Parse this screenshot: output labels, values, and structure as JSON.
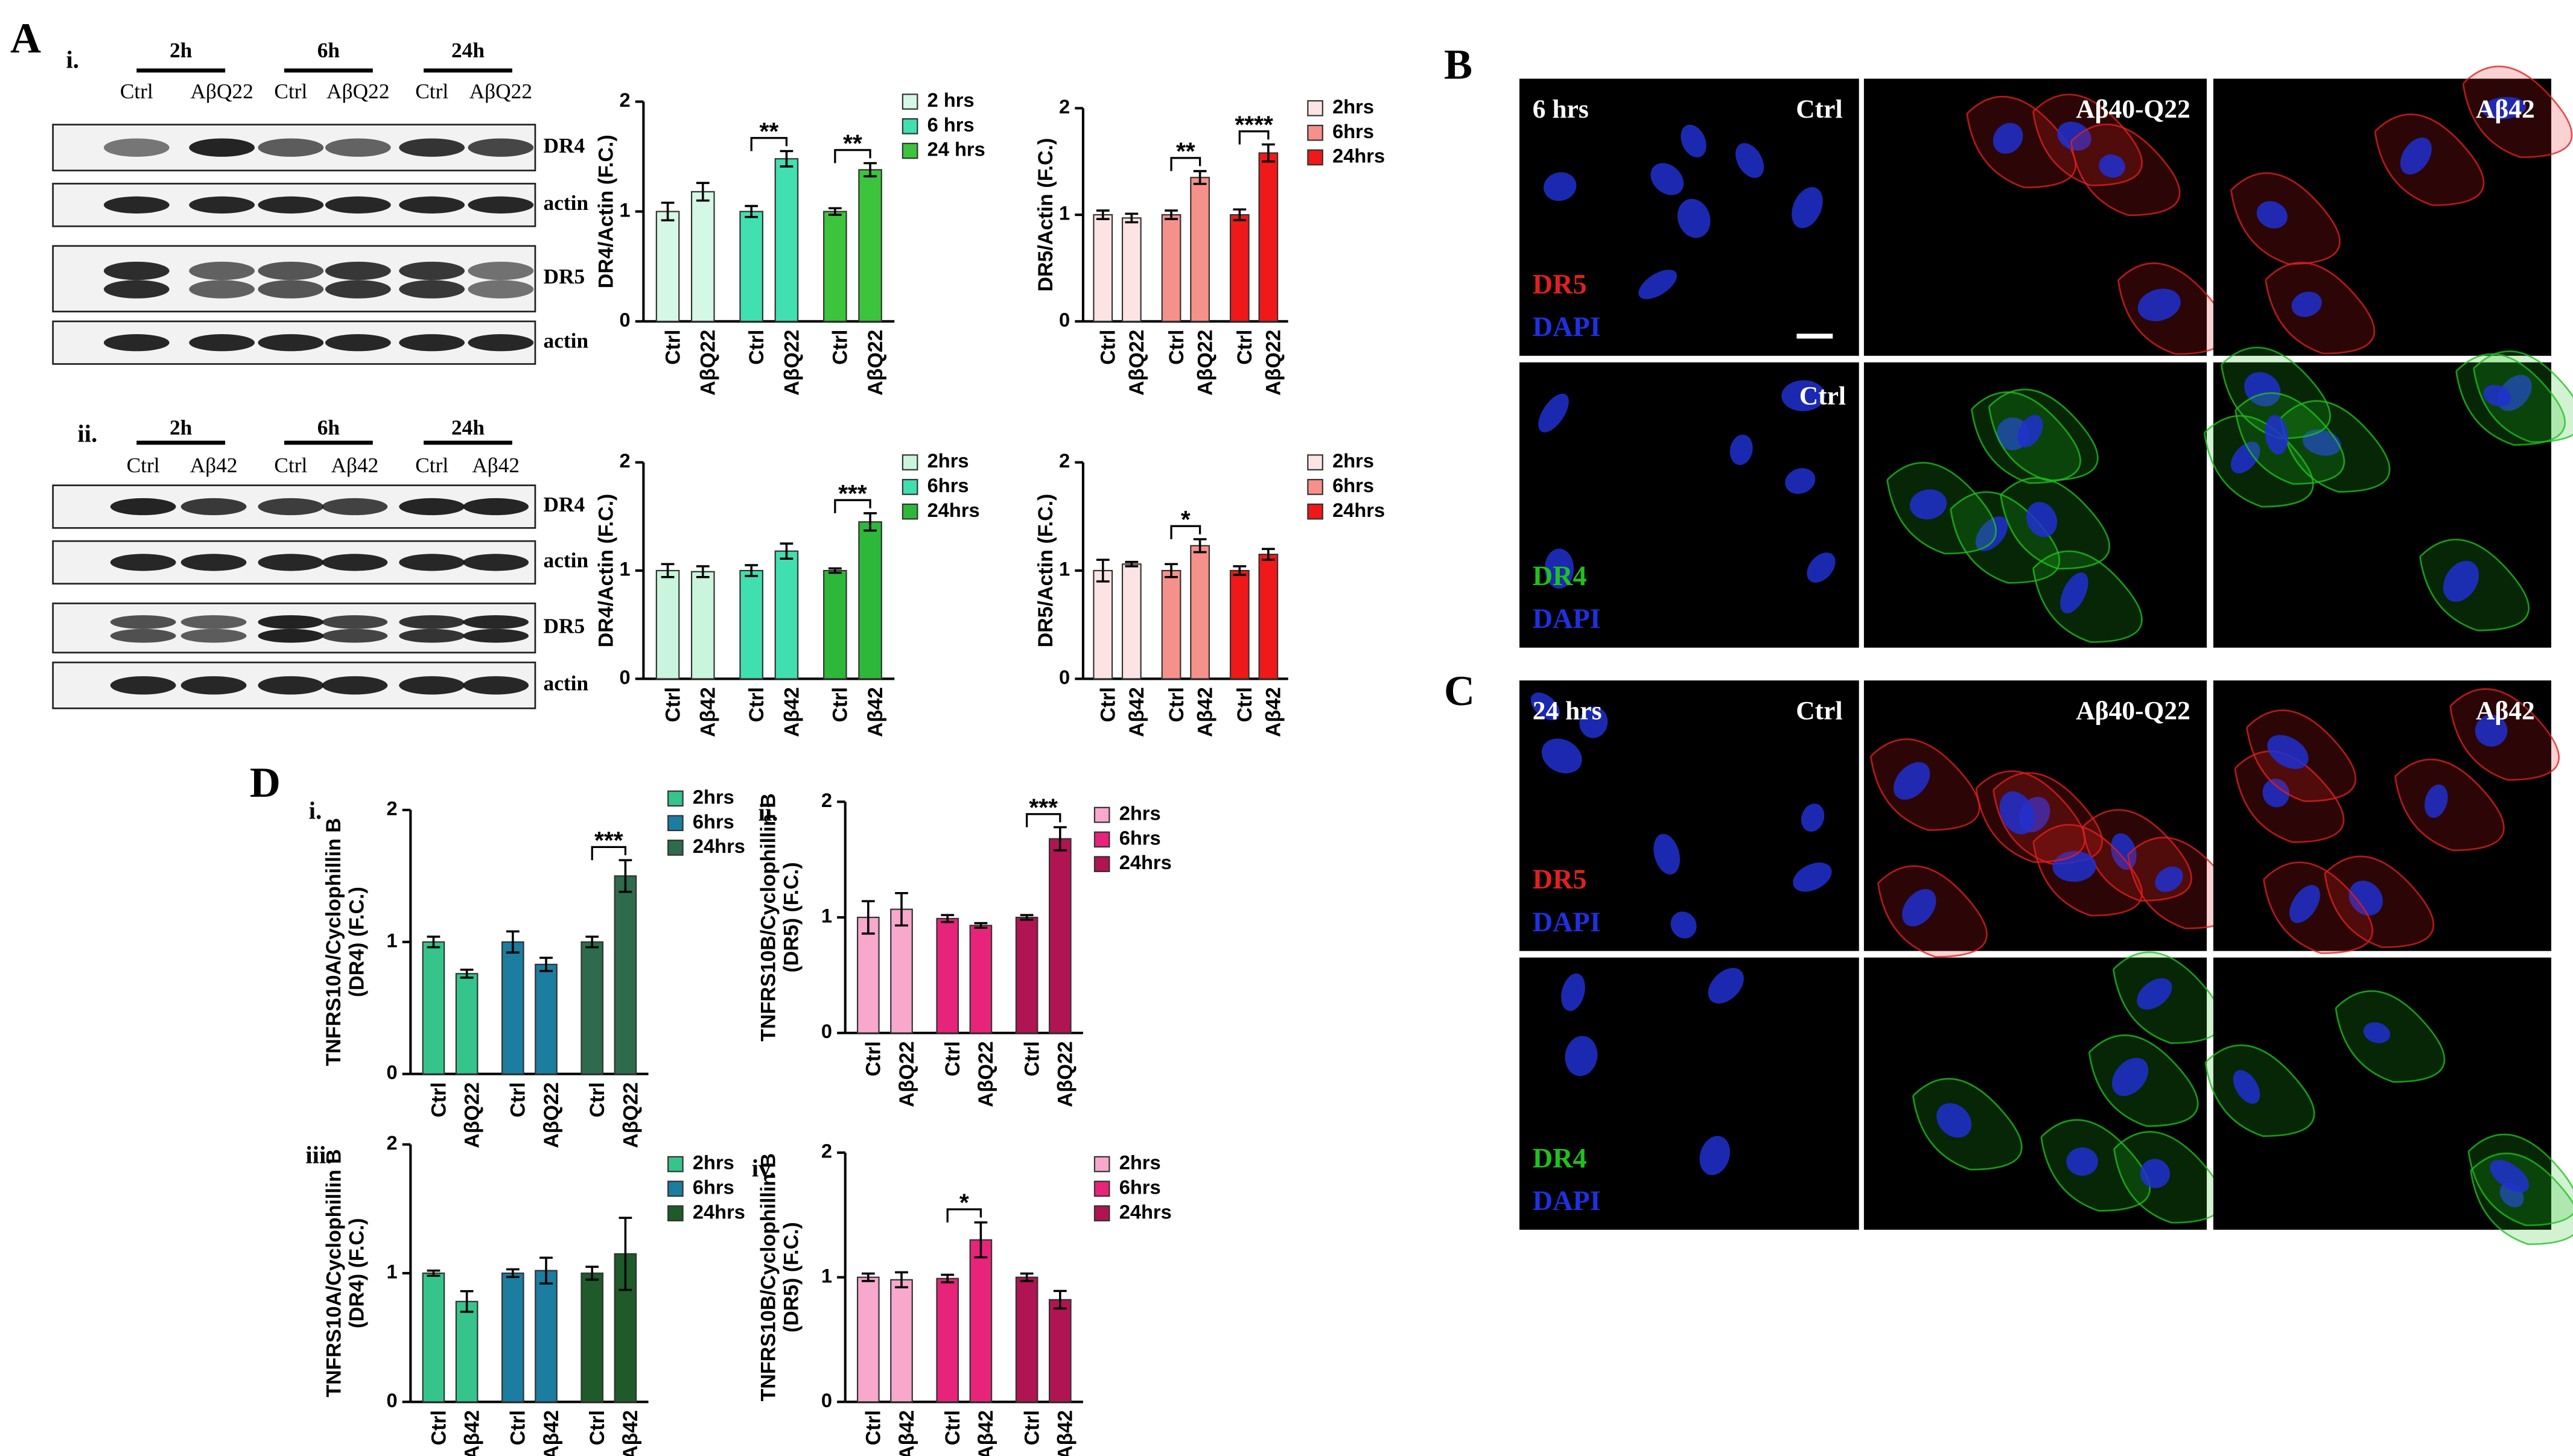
{
  "panels": {
    "A": "A",
    "B": "B",
    "C": "C",
    "D": "D"
  },
  "blots": [
    {
      "panel": "i.",
      "times": [
        "2h",
        "6h",
        "24h"
      ],
      "lanes": [
        "Ctrl",
        "AβQ22",
        "Ctrl",
        "AβQ22",
        "Ctrl",
        "AβQ22"
      ],
      "rows": [
        "DR4",
        "actin",
        "DR5",
        "actin"
      ]
    },
    {
      "panel": "ii.",
      "times": [
        "2h",
        "6h",
        "24h"
      ],
      "lanes": [
        "Ctrl",
        "Aβ42",
        "Ctrl",
        "Aβ42",
        "Ctrl",
        "Aβ42"
      ],
      "rows": [
        "DR4",
        "actin",
        "DR5",
        "actin"
      ]
    }
  ],
  "micrographs": [
    {
      "panel": "B",
      "time": "6 hrs",
      "columns": [
        "Ctrl",
        "Aβ40-Q22",
        "Aβ42"
      ],
      "rows": [
        {
          "stain": "DR5",
          "counter": "DAPI"
        },
        {
          "stain": "DR4",
          "counter": "DAPI",
          "column_label": "Ctrl"
        }
      ]
    },
    {
      "panel": "C",
      "time": "24 hrs",
      "columns": [
        "Ctrl",
        "Aβ40-Q22",
        "Aβ42"
      ],
      "rows": [
        {
          "stain": "DR5",
          "counter": "DAPI"
        },
        {
          "stain": "DR4",
          "counter": "DAPI"
        }
      ]
    }
  ],
  "chart_data": [
    {
      "type": "bar",
      "ylabel": [
        "DR4/Actin (F.C.)"
      ],
      "ylim": [
        0,
        2
      ],
      "yticks": [
        0,
        1,
        2
      ],
      "categories": [
        "Ctrl",
        "AβQ22"
      ],
      "series": [
        {
          "name": "2 hrs",
          "color": "#d4f7e6",
          "values": [
            1.0,
            1.18
          ],
          "errors": [
            0.08,
            0.08
          ]
        },
        {
          "name": "6 hrs",
          "color": "#40e0b0",
          "values": [
            1.0,
            1.48
          ],
          "errors": [
            0.05,
            0.07
          ],
          "significance": "**"
        },
        {
          "name": "24 hrs",
          "color": "#3cc43c",
          "values": [
            1.0,
            1.38
          ],
          "errors": [
            0.03,
            0.06
          ],
          "significance": "**"
        }
      ]
    },
    {
      "type": "bar",
      "ylabel": [
        "DR5/Actin (F.C.)"
      ],
      "ylim": [
        0,
        2
      ],
      "yticks": [
        0,
        1,
        2
      ],
      "categories": [
        "Ctrl",
        "AβQ22"
      ],
      "series": [
        {
          "name": "2hrs",
          "color": "#fde4e4",
          "values": [
            1.0,
            0.97
          ],
          "errors": [
            0.04,
            0.04
          ]
        },
        {
          "name": "6hrs",
          "color": "#f6908a",
          "values": [
            1.0,
            1.35
          ],
          "errors": [
            0.04,
            0.06
          ],
          "significance": "**"
        },
        {
          "name": "24hrs",
          "color": "#f01818",
          "values": [
            1.0,
            1.58
          ],
          "errors": [
            0.05,
            0.08
          ],
          "significance": "****"
        }
      ]
    },
    {
      "type": "bar",
      "ylabel": [
        "DR4/Actin (F.C.)"
      ],
      "ylim": [
        0,
        2
      ],
      "yticks": [
        0,
        1,
        2
      ],
      "categories": [
        "Ctrl",
        "Aβ42"
      ],
      "series": [
        {
          "name": "2hrs",
          "color": "#c8f5dc",
          "values": [
            1.0,
            0.99
          ],
          "errors": [
            0.06,
            0.05
          ]
        },
        {
          "name": "6hrs",
          "color": "#40dfb0",
          "values": [
            1.0,
            1.18
          ],
          "errors": [
            0.05,
            0.07
          ]
        },
        {
          "name": "24hrs",
          "color": "#2db83a",
          "values": [
            1.0,
            1.45
          ],
          "errors": [
            0.02,
            0.08
          ],
          "significance": "***"
        }
      ]
    },
    {
      "type": "bar",
      "ylabel": [
        "DR5/Actin (F.C.)"
      ],
      "ylim": [
        0,
        2
      ],
      "yticks": [
        0,
        1,
        2
      ],
      "categories": [
        "Ctrl",
        "Aβ42"
      ],
      "series": [
        {
          "name": "2hrs",
          "color": "#fde4e4",
          "values": [
            1.0,
            1.06
          ],
          "errors": [
            0.1,
            0.02
          ]
        },
        {
          "name": "6hrs",
          "color": "#f6908a",
          "values": [
            1.0,
            1.23
          ],
          "errors": [
            0.06,
            0.06
          ],
          "significance": "*"
        },
        {
          "name": "24hrs",
          "color": "#f01818",
          "values": [
            1.0,
            1.15
          ],
          "errors": [
            0.04,
            0.05
          ]
        }
      ]
    },
    {
      "type": "bar",
      "panel": "i.",
      "ylabel": [
        "TNFRS10A/Cyclophillin B",
        "(DR4) (F.C.)"
      ],
      "ylim": [
        0,
        2
      ],
      "yticks": [
        0,
        1,
        2
      ],
      "categories": [
        "Ctrl",
        "AβQ22"
      ],
      "series": [
        {
          "name": "2hrs",
          "color": "#34c48c",
          "values": [
            1.0,
            0.76
          ],
          "errors": [
            0.04,
            0.03
          ]
        },
        {
          "name": "6hrs",
          "color": "#1b7da0",
          "values": [
            1.0,
            0.83
          ],
          "errors": [
            0.08,
            0.05
          ]
        },
        {
          "name": "24hrs",
          "color": "#2d6b4c",
          "values": [
            1.0,
            1.5
          ],
          "errors": [
            0.04,
            0.12
          ],
          "significance": "***"
        }
      ]
    },
    {
      "type": "bar",
      "panel": "ii.",
      "ylabel": [
        "TNFRS10B/Cyclophillin B",
        "(DR5) (F.C.)"
      ],
      "ylim": [
        0,
        2
      ],
      "yticks": [
        0,
        1,
        2
      ],
      "categories": [
        "Ctrl",
        "AβQ22"
      ],
      "series": [
        {
          "name": "2hrs",
          "color": "#f7a8cc",
          "values": [
            1.0,
            1.07
          ],
          "errors": [
            0.14,
            0.14
          ]
        },
        {
          "name": "6hrs",
          "color": "#e8237a",
          "values": [
            0.99,
            0.93
          ],
          "errors": [
            0.03,
            0.02
          ]
        },
        {
          "name": "24hrs",
          "color": "#b01452",
          "values": [
            1.0,
            1.68
          ],
          "errors": [
            0.02,
            0.1
          ],
          "significance": "***"
        }
      ]
    },
    {
      "type": "bar",
      "panel": "iii.",
      "ylabel": [
        "TNFRS10A/Cyclophillin B",
        "(DR4) (F.C.)"
      ],
      "ylim": [
        0,
        2
      ],
      "yticks": [
        0,
        1,
        2
      ],
      "categories": [
        "Ctrl",
        "Aβ42"
      ],
      "series": [
        {
          "name": "2hrs",
          "color": "#34c48c",
          "values": [
            1.0,
            0.78
          ],
          "errors": [
            0.02,
            0.08
          ]
        },
        {
          "name": "6hrs",
          "color": "#1b7da0",
          "values": [
            1.0,
            1.02
          ],
          "errors": [
            0.03,
            0.1
          ]
        },
        {
          "name": "24hrs",
          "color": "#1e5a2a",
          "values": [
            1.0,
            1.15
          ],
          "errors": [
            0.05,
            0.28
          ]
        }
      ]
    },
    {
      "type": "bar",
      "panel": "iv.",
      "ylabel": [
        "TNFRS10B/Cyclophillin B",
        "(DR5) (F.C.)"
      ],
      "ylim": [
        0,
        2
      ],
      "yticks": [
        0,
        1,
        2
      ],
      "categories": [
        "Ctrl",
        "Aβ42"
      ],
      "series": [
        {
          "name": "2hrs",
          "color": "#f7a8cc",
          "values": [
            1.0,
            0.98
          ],
          "errors": [
            0.03,
            0.06
          ]
        },
        {
          "name": "6hrs",
          "color": "#e8237a",
          "values": [
            0.99,
            1.3
          ],
          "errors": [
            0.03,
            0.14
          ],
          "significance": "*"
        },
        {
          "name": "24hrs",
          "color": "#b01452",
          "values": [
            1.0,
            0.82
          ],
          "errors": [
            0.03,
            0.07
          ]
        }
      ]
    }
  ]
}
